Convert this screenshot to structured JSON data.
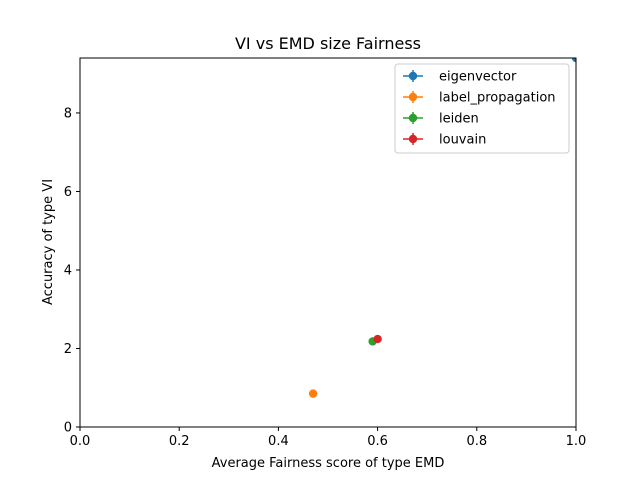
{
  "chart_data": {
    "type": "scatter",
    "title": "VI vs EMD size Fairness",
    "xlabel": "Average Fairness score of type EMD",
    "ylabel": "Accuracy of type VI",
    "xlim": [
      0.0,
      1.0
    ],
    "ylim": [
      0.0,
      9.4
    ],
    "x_ticks": [
      0.0,
      0.2,
      0.4,
      0.6,
      0.8,
      1.0
    ],
    "x_tick_labels": [
      "0.0",
      "0.2",
      "0.4",
      "0.6",
      "0.8",
      "1.0"
    ],
    "y_ticks": [
      0,
      2,
      4,
      6,
      8
    ],
    "y_tick_labels": [
      "0",
      "2",
      "4",
      "6",
      "8"
    ],
    "grid": false,
    "legend_position": "top-right",
    "series": [
      {
        "name": "eigenvector",
        "color": "#1f77b4",
        "points": [
          {
            "x": 1.0,
            "y": 9.4
          }
        ]
      },
      {
        "name": "label_propagation",
        "color": "#ff7f0e",
        "points": [
          {
            "x": 0.47,
            "y": 0.85
          }
        ]
      },
      {
        "name": "leiden",
        "color": "#2ca02c",
        "points": [
          {
            "x": 0.59,
            "y": 2.18
          }
        ]
      },
      {
        "name": "louvain",
        "color": "#d62728",
        "points": [
          {
            "x": 0.6,
            "y": 2.24
          }
        ]
      }
    ]
  }
}
